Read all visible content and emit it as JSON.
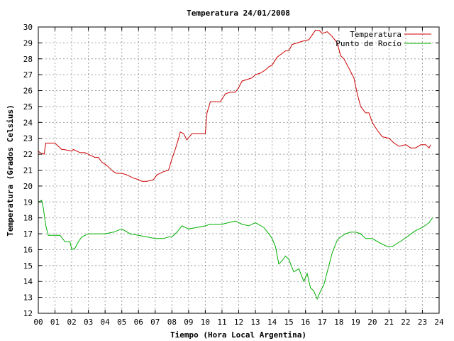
{
  "chart_data": {
    "type": "line",
    "title": "Temperatura 24/01/2008",
    "xlabel": "Tiempo (Hora Local Argentina)",
    "ylabel": "Temperatura (Grados Celsius)",
    "xlim": [
      0,
      24
    ],
    "ylim": [
      12,
      30
    ],
    "x_ticks": [
      "00",
      "01",
      "02",
      "03",
      "04",
      "05",
      "06",
      "07",
      "08",
      "09",
      "10",
      "11",
      "12",
      "13",
      "14",
      "15",
      "16",
      "17",
      "18",
      "19",
      "20",
      "21",
      "22",
      "23",
      "24"
    ],
    "y_ticks": [
      "12",
      "13",
      "14",
      "15",
      "16",
      "17",
      "18",
      "19",
      "20",
      "21",
      "22",
      "23",
      "24",
      "25",
      "26",
      "27",
      "28",
      "29",
      "30"
    ],
    "grid": true,
    "legend_position": "top-right",
    "series": [
      {
        "name": "Temperatura",
        "color": "#cc0000",
        "x": [
          0.0,
          0.1,
          0.35,
          0.45,
          0.55,
          1.0,
          1.4,
          1.5,
          2.0,
          2.1,
          2.3,
          2.5,
          2.8,
          3.2,
          3.4,
          3.6,
          3.8,
          4.1,
          4.3,
          4.5,
          4.7,
          5.0,
          5.3,
          5.7,
          6.0,
          6.2,
          6.5,
          6.9,
          7.1,
          7.5,
          7.8,
          8.0,
          8.2,
          8.4,
          8.5,
          8.7,
          8.9,
          9.2,
          9.5,
          10.0,
          10.1,
          10.3,
          10.5,
          10.9,
          11.2,
          11.5,
          11.8,
          12.0,
          12.2,
          12.5,
          12.8,
          13.0,
          13.3,
          13.6,
          13.8,
          14.0,
          14.3,
          14.8,
          15.0,
          15.2,
          15.5,
          15.8,
          16.2,
          16.4,
          16.6,
          16.8,
          17.0,
          17.3,
          17.6,
          17.9,
          18.1,
          18.3,
          18.6,
          18.9,
          19.1,
          19.3,
          19.6,
          19.8,
          20.0,
          20.3,
          20.6,
          21.0,
          21.3,
          21.6,
          22.0,
          22.3,
          22.6,
          22.9,
          23.2,
          23.4,
          23.5
        ],
        "y": [
          22.2,
          22.1,
          22.0,
          22.7,
          22.7,
          22.7,
          22.3,
          22.3,
          22.2,
          22.3,
          22.2,
          22.1,
          22.1,
          21.9,
          21.8,
          21.8,
          21.5,
          21.3,
          21.1,
          20.9,
          20.8,
          20.8,
          20.7,
          20.5,
          20.4,
          20.3,
          20.3,
          20.4,
          20.7,
          20.9,
          21.0,
          21.7,
          22.3,
          23.0,
          23.4,
          23.3,
          22.9,
          23.3,
          23.3,
          23.3,
          24.6,
          25.3,
          25.3,
          25.3,
          25.8,
          25.9,
          25.9,
          26.2,
          26.6,
          26.7,
          26.8,
          27.0,
          27.1,
          27.3,
          27.5,
          27.6,
          28.1,
          28.5,
          28.5,
          28.9,
          29.0,
          29.1,
          29.2,
          29.5,
          29.8,
          29.8,
          29.6,
          29.7,
          29.4,
          29.0,
          28.2,
          28.0,
          27.4,
          26.8,
          25.8,
          25.0,
          24.6,
          24.6,
          24.0,
          23.5,
          23.1,
          23.0,
          22.7,
          22.5,
          22.6,
          22.4,
          22.4,
          22.6,
          22.6,
          22.4,
          22.6
        ]
      },
      {
        "name": "Punto de Rocío",
        "color": "#00b000",
        "x": [
          0.0,
          0.2,
          0.3,
          0.45,
          0.6,
          1.0,
          1.3,
          1.6,
          1.9,
          2.0,
          2.2,
          2.4,
          2.6,
          2.8,
          3.0,
          3.5,
          4.0,
          4.5,
          5.0,
          5.5,
          6.0,
          6.5,
          7.0,
          7.5,
          7.8,
          8.0,
          8.3,
          8.6,
          9.0,
          9.5,
          10.0,
          10.3,
          10.6,
          11.0,
          11.4,
          11.8,
          12.2,
          12.6,
          13.0,
          13.5,
          13.8,
          14.0,
          14.2,
          14.4,
          14.6,
          14.8,
          15.0,
          15.3,
          15.6,
          15.9,
          16.1,
          16.3,
          16.5,
          16.7,
          16.9,
          17.1,
          17.3,
          17.6,
          17.9,
          18.1,
          18.4,
          18.7,
          19.0,
          19.3,
          19.6,
          20.0,
          20.5,
          20.9,
          21.2,
          21.5,
          21.8,
          22.2,
          22.6,
          23.0,
          23.4,
          23.6
        ],
        "y": [
          19.0,
          19.1,
          18.6,
          17.5,
          16.9,
          16.9,
          16.9,
          16.5,
          16.5,
          16.0,
          16.1,
          16.5,
          16.8,
          16.9,
          17.0,
          17.0,
          17.0,
          17.1,
          17.3,
          17.0,
          16.9,
          16.8,
          16.7,
          16.7,
          16.8,
          16.8,
          17.1,
          17.5,
          17.3,
          17.4,
          17.5,
          17.6,
          17.6,
          17.6,
          17.7,
          17.8,
          17.6,
          17.5,
          17.7,
          17.4,
          17.0,
          16.7,
          16.2,
          15.1,
          15.3,
          15.6,
          15.4,
          14.6,
          14.8,
          14.0,
          14.5,
          13.6,
          13.4,
          12.9,
          13.4,
          13.8,
          14.6,
          15.8,
          16.6,
          16.8,
          17.0,
          17.1,
          17.1,
          17.0,
          16.7,
          16.7,
          16.4,
          16.2,
          16.2,
          16.4,
          16.6,
          16.9,
          17.2,
          17.4,
          17.7,
          18.0
        ]
      }
    ]
  }
}
